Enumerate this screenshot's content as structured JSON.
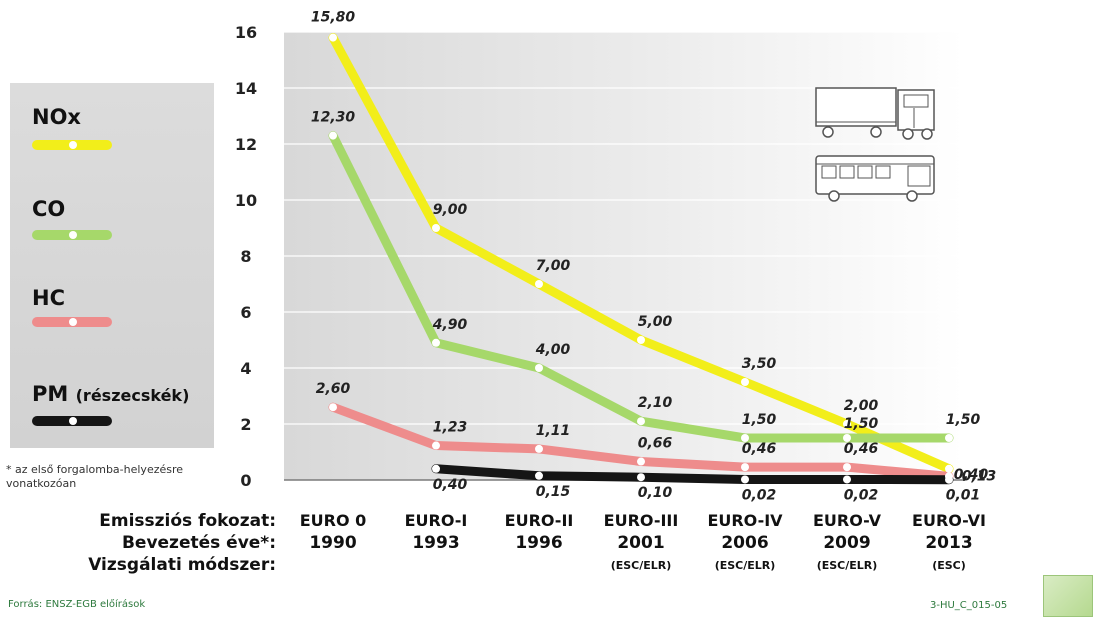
{
  "chart_data": {
    "type": "line",
    "x_categories": [
      "EURO 0",
      "EURO-I",
      "EURO-II",
      "EURO-III",
      "EURO-IV",
      "EURO-V",
      "EURO-VI"
    ],
    "years": [
      "1990",
      "1993",
      "1996",
      "2001",
      "2006",
      "2009",
      "2013"
    ],
    "methods": [
      "",
      "",
      "",
      "(ESC/ELR)",
      "(ESC/ELR)",
      "(ESC/ELR)",
      "(ESC)"
    ],
    "ylim": [
      0,
      16
    ],
    "yticks": [
      0,
      2,
      4,
      6,
      8,
      10,
      12,
      14,
      16
    ],
    "grid": true,
    "legend_position": "left",
    "series": [
      {
        "name": "NOx",
        "name_suffix": "",
        "color": "#f2ee1a",
        "values": [
          15.8,
          9.0,
          7.0,
          5.0,
          3.5,
          2.0,
          0.4
        ],
        "labels": [
          "15,80",
          "9,00",
          "7,00",
          "5,00",
          "3,50",
          "2,00",
          "0,40"
        ]
      },
      {
        "name": "CO",
        "name_suffix": "",
        "color": "#a6d86a",
        "values": [
          12.3,
          4.9,
          4.0,
          2.1,
          1.5,
          1.5,
          1.5
        ],
        "labels": [
          "12,30",
          "4,90",
          "4,00",
          "2,10",
          "1,50",
          "1,50",
          "1,50"
        ]
      },
      {
        "name": "HC",
        "name_suffix": "",
        "color": "#ee8c8c",
        "values": [
          2.6,
          1.23,
          1.11,
          0.66,
          0.46,
          0.46,
          0.13
        ],
        "labels": [
          "2,60",
          "1,23",
          "1,11",
          "0,66",
          "0,46",
          "0,46",
          "0,13"
        ]
      },
      {
        "name": "PM",
        "name_suffix": "(részecskék)",
        "color": "#151515",
        "values": [
          null,
          0.4,
          0.15,
          0.1,
          0.02,
          0.02,
          0.01
        ],
        "labels": [
          "",
          "0,40",
          "0,15",
          "0,10",
          "0,02",
          "0,02",
          "0,01"
        ]
      }
    ]
  },
  "row_labels": {
    "stage": "Emissziós fokozat:",
    "year": "Bevezetés éve*:",
    "method": "Vizsgálati módszer:"
  },
  "footnote": "* az első forgalomba-helyezésre vonatkozóan",
  "source": "Forrás: ENSZ-EGB előírások",
  "code": "3-HU_C_015-05",
  "icons": [
    "truck-icon",
    "bus-icon"
  ]
}
